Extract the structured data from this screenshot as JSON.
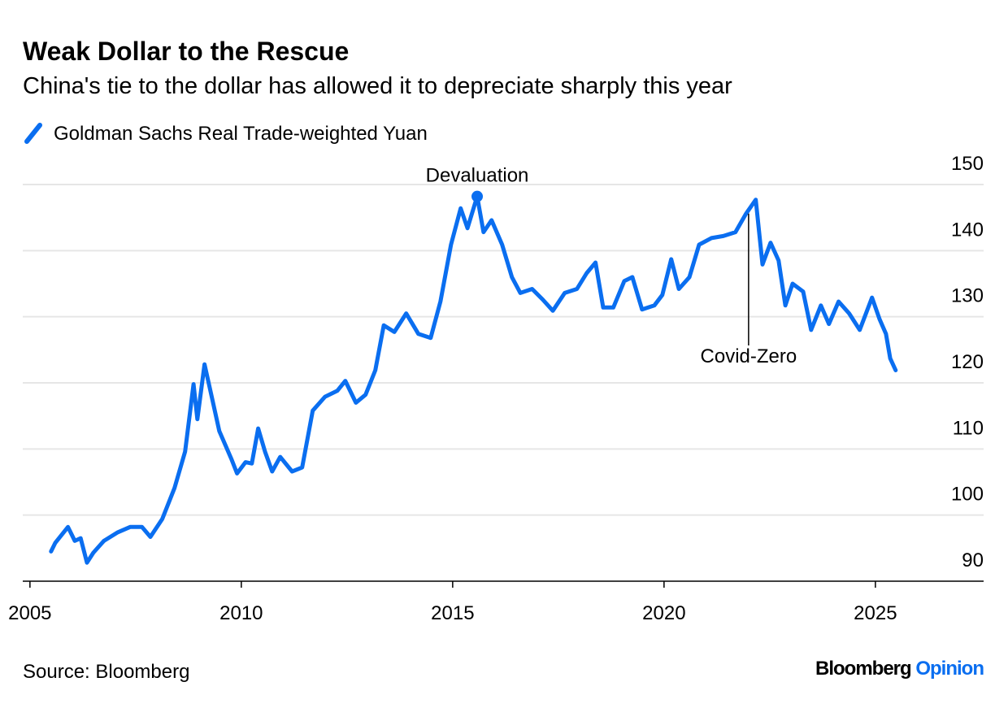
{
  "chart_data": {
    "type": "line",
    "title": "Weak Dollar to the Rescue",
    "subtitle": "China's tie to the dollar has allowed it to depreciate sharply this year",
    "source": "Source: Bloomberg",
    "brand": {
      "name": "Bloomberg",
      "section": "Opinion"
    },
    "x": [
      2005.5,
      2005.6,
      2005.9,
      2006.06,
      2006.2,
      2006.35,
      2006.5,
      2006.75,
      2007.08,
      2007.37,
      2007.65,
      2007.85,
      2008.13,
      2008.42,
      2008.67,
      2008.87,
      2008.96,
      2009.13,
      2009.29,
      2009.48,
      2009.77,
      2009.9,
      2010.1,
      2010.25,
      2010.4,
      2010.56,
      2010.73,
      2010.92,
      2011.2,
      2011.44,
      2011.69,
      2011.98,
      2012.27,
      2012.46,
      2012.71,
      2012.94,
      2013.17,
      2013.37,
      2013.62,
      2013.9,
      2014.19,
      2014.48,
      2014.71,
      2014.96,
      2015.19,
      2015.35,
      2015.58,
      2015.73,
      2015.92,
      2016.17,
      2016.4,
      2016.6,
      2016.88,
      2017.13,
      2017.37,
      2017.65,
      2017.94,
      2018.17,
      2018.38,
      2018.56,
      2018.8,
      2019.06,
      2019.25,
      2019.48,
      2019.77,
      2019.96,
      2020.17,
      2020.35,
      2020.6,
      2020.83,
      2021.12,
      2021.4,
      2021.69,
      2021.94,
      2022.17,
      2022.33,
      2022.52,
      2022.71,
      2022.87,
      2023.04,
      2023.29,
      2023.48,
      2023.71,
      2023.9,
      2024.13,
      2024.38,
      2024.63,
      2024.92,
      2025.1,
      2025.25,
      2025.35,
      2025.48
    ],
    "series": [
      {
        "name": "Goldman Sachs Real Trade-weighted Yuan",
        "color": "#0a6ef0",
        "values": [
          94.5,
          95.8,
          98.2,
          96.1,
          96.5,
          92.8,
          94.3,
          96.1,
          97.4,
          98.2,
          98.2,
          96.7,
          99.4,
          104.1,
          109.6,
          119.8,
          114.5,
          122.8,
          118.2,
          112.7,
          108.4,
          106.3,
          108.0,
          107.8,
          113.1,
          109.6,
          106.6,
          108.8,
          106.6,
          107.2,
          115.8,
          117.9,
          118.8,
          120.3,
          117.0,
          118.2,
          121.9,
          128.7,
          127.7,
          130.5,
          127.4,
          126.8,
          132.3,
          140.9,
          146.4,
          143.4,
          148.2,
          142.8,
          144.6,
          140.9,
          136.0,
          133.6,
          134.2,
          132.6,
          130.9,
          133.6,
          134.2,
          136.6,
          138.2,
          131.4,
          131.4,
          135.4,
          136.0,
          131.1,
          131.7,
          133.3,
          138.7,
          134.2,
          136.0,
          140.9,
          141.9,
          142.2,
          142.8,
          145.6,
          147.7,
          137.9,
          141.2,
          138.5,
          131.7,
          135.0,
          133.8,
          128.0,
          131.7,
          128.9,
          132.3,
          130.5,
          128.0,
          132.9,
          129.6,
          127.4,
          123.7,
          121.9
        ]
      }
    ],
    "annotations": [
      {
        "text": "Devaluation",
        "x": 2015.58,
        "y": 148.2
      },
      {
        "text": "Covid-Zero",
        "x": 2022.0,
        "y": 145.6
      }
    ],
    "xlim": [
      2004.83,
      2027.56
    ],
    "xticks": [
      2005,
      2010,
      2015,
      2020,
      2025
    ],
    "ylim": [
      90,
      150
    ],
    "yticks": [
      90,
      100,
      110,
      120,
      130,
      140,
      150
    ],
    "grid": true
  }
}
